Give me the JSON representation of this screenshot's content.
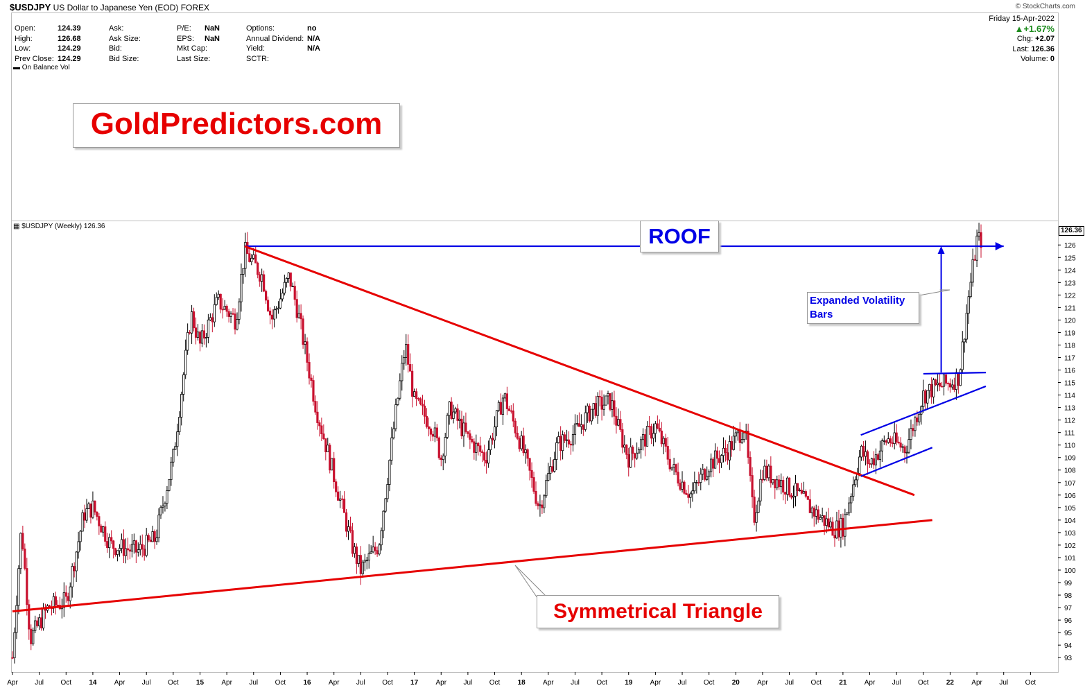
{
  "header": {
    "symbol": "$USDJPY",
    "name": "US Dollar to Japanese Yen (EOD) FOREX",
    "copyright": "© StockCharts.com",
    "date": "Friday  15-Apr-2022",
    "pct_change": "▲+1.67%",
    "chg_label": "Chg:",
    "chg_value": "+2.07",
    "last_label": "Last:",
    "last_value": "126.36",
    "volume_label": "Volume:",
    "volume_value": "0"
  },
  "stats": {
    "open_label": "Open:",
    "open": "124.39",
    "high_label": "High:",
    "high": "126.68",
    "low_label": "Low:",
    "low": "124.29",
    "prev_label": "Prev Close:",
    "prev": "124.29",
    "ask_label": "Ask:",
    "ask_size_label": "Ask Size:",
    "bid_label": "Bid:",
    "bid_size_label": "Bid Size:",
    "pe_label": "P/E:",
    "pe": "NaN",
    "eps_label": "EPS:",
    "eps": "NaN",
    "mktcap_label": "Mkt Cap:",
    "lastsize_label": "Last Size:",
    "options_label": "Options:",
    "options": "no",
    "div_label": "Annual Dividend:",
    "div": "N/A",
    "yield_label": "Yield:",
    "yield": "N/A",
    "sctr_label": "SCTR:"
  },
  "legends": {
    "obv": "On Balance Vol",
    "price": "$USDJPY (Weekly) 126.36",
    "last_price_tag": "126.36"
  },
  "annotations": {
    "brand": "GoldPredictors.com",
    "roof": "ROOF",
    "volatility": "Expanded Volatility Bars",
    "triangle": "Symmetrical Triangle"
  },
  "chart_data": {
    "type": "candlestick",
    "title": "$USDJPY (Weekly) 126.36",
    "frequency": "weekly",
    "y_ticks": [
      93,
      94,
      95,
      96,
      97,
      98,
      99,
      100,
      101,
      102,
      103,
      104,
      105,
      106,
      107,
      108,
      109,
      110,
      111,
      112,
      113,
      114,
      115,
      116,
      117,
      118,
      119,
      120,
      121,
      122,
      123,
      124,
      125,
      126
    ],
    "ylim": [
      92.4,
      126.9
    ],
    "x_ticks": [
      "Apr",
      "Jul",
      "Oct",
      "14",
      "Apr",
      "Jul",
      "Oct",
      "15",
      "Apr",
      "Jul",
      "Oct",
      "16",
      "Apr",
      "Jul",
      "Oct",
      "17",
      "Apr",
      "Jul",
      "Oct",
      "18",
      "Apr",
      "Jul",
      "Oct",
      "19",
      "Apr",
      "Jul",
      "Oct",
      "20",
      "Apr",
      "Jul",
      "Oct",
      "21",
      "Apr",
      "Jul",
      "Oct",
      "22",
      "Apr",
      "Jul",
      "Oct"
    ],
    "xlim": [
      "2013-04",
      "2023-01"
    ],
    "anchors": [
      [
        "2013-04",
        93.0
      ],
      [
        "2013-05",
        103.5
      ],
      [
        "2013-06",
        94.5
      ],
      [
        "2013-08",
        97.0
      ],
      [
        "2013-10",
        97.5
      ],
      [
        "2013-12",
        104.5
      ],
      [
        "2014-01",
        105.0
      ],
      [
        "2014-03",
        102.0
      ],
      [
        "2014-06",
        101.5
      ],
      [
        "2014-08",
        102.5
      ],
      [
        "2014-10",
        109.0
      ],
      [
        "2014-12",
        120.5
      ],
      [
        "2015-01",
        118.0
      ],
      [
        "2015-03",
        121.5
      ],
      [
        "2015-05",
        120.0
      ],
      [
        "2015-06",
        125.5
      ],
      [
        "2015-08",
        123.5
      ],
      [
        "2015-09",
        120.0
      ],
      [
        "2015-11",
        123.5
      ],
      [
        "2015-12",
        120.5
      ],
      [
        "2016-02",
        113.0
      ],
      [
        "2016-04",
        107.5
      ],
      [
        "2016-06",
        102.0
      ],
      [
        "2016-07",
        100.0
      ],
      [
        "2016-09",
        102.0
      ],
      [
        "2016-11",
        113.0
      ],
      [
        "2016-12",
        118.0
      ],
      [
        "2017-01",
        113.5
      ],
      [
        "2017-03",
        111.5
      ],
      [
        "2017-04",
        109.0
      ],
      [
        "2017-05",
        113.0
      ],
      [
        "2017-07",
        110.5
      ],
      [
        "2017-09",
        109.0
      ],
      [
        "2017-11",
        114.0
      ],
      [
        "2018-01",
        110.0
      ],
      [
        "2018-03",
        105.0
      ],
      [
        "2018-05",
        110.0
      ],
      [
        "2018-07",
        111.0
      ],
      [
        "2018-09",
        113.0
      ],
      [
        "2018-11",
        113.5
      ],
      [
        "2018-12",
        111.0
      ],
      [
        "2019-01",
        109.0
      ],
      [
        "2019-04",
        111.5
      ],
      [
        "2019-06",
        108.0
      ],
      [
        "2019-08",
        106.0
      ],
      [
        "2019-10",
        108.5
      ],
      [
        "2019-12",
        109.5
      ],
      [
        "2020-02",
        111.5
      ],
      [
        "2020-03",
        104.0
      ],
      [
        "2020-04",
        108.0
      ],
      [
        "2020-06",
        107.0
      ],
      [
        "2020-08",
        106.0
      ],
      [
        "2020-10",
        104.5
      ],
      [
        "2020-12",
        103.3
      ],
      [
        "2021-01",
        103.5
      ],
      [
        "2021-03",
        109.5
      ],
      [
        "2021-04",
        108.5
      ],
      [
        "2021-06",
        110.5
      ],
      [
        "2021-08",
        109.7
      ],
      [
        "2021-10",
        114.0
      ],
      [
        "2021-11",
        114.5
      ],
      [
        "2022-01",
        115.0
      ],
      [
        "2022-02",
        115.5
      ],
      [
        "2022-03",
        121.5
      ],
      [
        "2022-04",
        126.4
      ]
    ],
    "trendlines": [
      {
        "label": "ROOF",
        "color": "#0000e6",
        "from": [
          "2015-06",
          125.9
        ],
        "to": [
          "2022-07",
          125.9
        ]
      },
      {
        "label": "triangle upper",
        "color": "#e60000",
        "from": [
          "2015-06",
          125.9
        ],
        "to": [
          "2021-09",
          106.0
        ]
      },
      {
        "label": "triangle lower",
        "color": "#e60000",
        "from": [
          "2013-04",
          96.7
        ],
        "to": [
          "2021-11",
          104.0
        ]
      },
      {
        "label": "channel upper",
        "color": "#0000e6",
        "from": [
          "2021-03",
          110.8
        ],
        "to": [
          "2022-05",
          114.7
        ]
      },
      {
        "label": "channel lower",
        "color": "#0000e6",
        "from": [
          "2021-03",
          107.5
        ],
        "to": [
          "2021-11",
          109.8
        ]
      },
      {
        "label": "breakout level",
        "color": "#0000e6",
        "from": [
          "2021-10",
          115.7
        ],
        "to": [
          "2022-05",
          115.8
        ]
      }
    ]
  }
}
